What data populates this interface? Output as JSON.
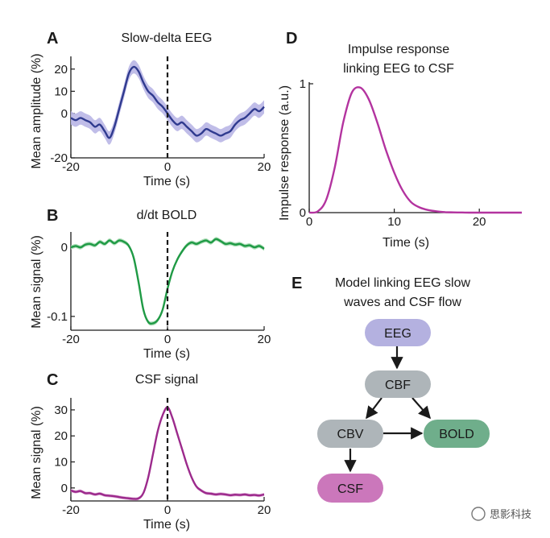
{
  "panel_labels": [
    "A",
    "B",
    "C",
    "D",
    "E"
  ],
  "chart_data": [
    {
      "id": "A",
      "type": "line",
      "title": "Slow-delta EEG",
      "xlabel": "Time (s)",
      "ylabel": "Mean amplitude (%)",
      "xlim": [
        -20,
        20
      ],
      "ylim": [
        -20,
        25
      ],
      "xticks": [
        -20,
        0,
        20
      ],
      "yticks": [
        -20,
        0,
        10,
        20
      ],
      "line_color": "#2f3a8f",
      "band_color": "#b9b6e6",
      "marker_line_x": 0,
      "series": [
        {
          "x": [
            -20,
            -19,
            -18,
            -17,
            -16,
            -15,
            -14,
            -13,
            -12,
            -11,
            -10,
            -9,
            -8,
            -7,
            -6,
            -5,
            -4,
            -3,
            -2,
            -1,
            0,
            1,
            2,
            3,
            4,
            5,
            6,
            7,
            8,
            9,
            10,
            11,
            12,
            13,
            14,
            15,
            16,
            17,
            18,
            19,
            20
          ],
          "values": [
            -2,
            -3,
            -2,
            -3,
            -4,
            -6,
            -5,
            -8,
            -11,
            -6,
            2,
            10,
            18,
            21,
            19,
            14,
            10,
            8,
            5,
            3,
            0,
            -3,
            -5,
            -4,
            -6,
            -8,
            -10,
            -9,
            -7,
            -8,
            -9,
            -10,
            -9,
            -8,
            -5,
            -3,
            -2,
            0,
            2,
            1,
            3
          ],
          "band": 3
        }
      ]
    },
    {
      "id": "B",
      "type": "line",
      "title": "d/dt BOLD",
      "xlabel": "Time (s)",
      "ylabel": "Mean signal (%)",
      "xlim": [
        -20,
        20
      ],
      "ylim": [
        -0.12,
        0.02
      ],
      "xticks": [
        -20,
        0,
        20
      ],
      "yticks": [
        {
          "v": 0,
          "label": "0"
        },
        {
          "v": -0.1,
          "label": "-0.1"
        }
      ],
      "line_color": "#1f9a45",
      "band_color": "#a8dcb4",
      "marker_line_x": 0,
      "series": [
        {
          "x": [
            -20,
            -19,
            -18,
            -17,
            -16,
            -15,
            -14,
            -13,
            -12,
            -11,
            -10,
            -9,
            -8,
            -7,
            -6,
            -5,
            -4,
            -3,
            -2,
            -1,
            0,
            1,
            2,
            3,
            4,
            5,
            6,
            7,
            8,
            9,
            10,
            11,
            12,
            13,
            14,
            15,
            16,
            17,
            18,
            19,
            20
          ],
          "values": [
            0,
            0.002,
            0,
            0.004,
            0.005,
            0.003,
            0.008,
            0.005,
            0.01,
            0.006,
            0.01,
            0.008,
            0.002,
            -0.015,
            -0.05,
            -0.09,
            -0.108,
            -0.11,
            -0.105,
            -0.09,
            -0.06,
            -0.035,
            -0.018,
            -0.006,
            0.003,
            0.007,
            0.005,
            0.008,
            0.01,
            0.007,
            0.012,
            0.009,
            0.005,
            0.006,
            0.004,
            0.005,
            0.002,
            0.003,
            0,
            0.002,
            -0.002
          ],
          "band": 0.003
        }
      ]
    },
    {
      "id": "C",
      "type": "line",
      "title": "CSF signal",
      "xlabel": "Time (s)",
      "ylabel": "Mean signal (%)",
      "xlim": [
        -20,
        20
      ],
      "ylim": [
        -5,
        34
      ],
      "xticks": [
        -20,
        0,
        20
      ],
      "yticks": [
        0,
        10,
        20,
        30
      ],
      "line_color": "#9c2a8c",
      "band_color": "#dca6d5",
      "marker_line_x": 0,
      "series": [
        {
          "x": [
            -20,
            -19,
            -18,
            -17,
            -16,
            -15,
            -14,
            -13,
            -12,
            -11,
            -10,
            -9,
            -8,
            -7,
            -6,
            -5,
            -4,
            -3,
            -2,
            -1,
            0,
            1,
            2,
            3,
            4,
            5,
            6,
            7,
            8,
            9,
            10,
            11,
            12,
            13,
            14,
            15,
            16,
            17,
            18,
            19,
            20
          ],
          "values": [
            -1,
            -1.5,
            -1.2,
            -2,
            -2,
            -2.5,
            -2.2,
            -2.8,
            -3,
            -3.2,
            -3.5,
            -3.8,
            -4,
            -4.2,
            -4,
            -2,
            4,
            13,
            22,
            28,
            31,
            27,
            21,
            15,
            9,
            4,
            0.5,
            -1,
            -2,
            -2.2,
            -2.5,
            -2.3,
            -2.5,
            -2.8,
            -2.6,
            -2.7,
            -2.5,
            -2.8,
            -2.7,
            -2.9,
            -2.5
          ],
          "band": 0.6
        }
      ]
    },
    {
      "id": "D",
      "type": "line",
      "title_lines": [
        "Impulse response",
        "linking EEG to CSF"
      ],
      "xlabel": "Time (s)",
      "ylabel": "Impulse response (a.u.)",
      "xlim": [
        0,
        25
      ],
      "ylim": [
        0,
        1
      ],
      "xticks": [
        0,
        10,
        20
      ],
      "yticks": [
        0,
        1
      ],
      "line_color": "#b3339f",
      "series": [
        {
          "x": [
            0,
            1,
            2,
            3,
            4,
            5,
            6,
            7,
            8,
            9,
            10,
            11,
            12,
            13,
            14,
            15,
            16,
            17,
            18,
            19,
            20,
            21,
            22,
            23,
            24,
            25
          ],
          "values": [
            0,
            0.01,
            0.1,
            0.35,
            0.7,
            0.93,
            0.97,
            0.88,
            0.7,
            0.49,
            0.31,
            0.17,
            0.08,
            0.04,
            0.02,
            0.01,
            0.004,
            0.002,
            0.001,
            0,
            0,
            0,
            0,
            0,
            0,
            0
          ]
        }
      ]
    }
  ],
  "diagram": {
    "title_lines": [
      "Model linking EEG slow",
      "waves and CSF flow"
    ],
    "nodes": [
      {
        "id": "EEG",
        "label": "EEG",
        "color": "#b4b1e0"
      },
      {
        "id": "CBF",
        "label": "CBF",
        "color": "#aeb5b9"
      },
      {
        "id": "CBV",
        "label": "CBV",
        "color": "#aeb5b9"
      },
      {
        "id": "BOLD",
        "label": "BOLD",
        "color": "#6fae8b"
      },
      {
        "id": "CSF",
        "label": "CSF",
        "color": "#cb77bb"
      }
    ],
    "edges": [
      {
        "from": "EEG",
        "to": "CBF"
      },
      {
        "from": "CBF",
        "to": "CBV"
      },
      {
        "from": "CBF",
        "to": "BOLD"
      },
      {
        "from": "CBV",
        "to": "BOLD"
      },
      {
        "from": "CBV",
        "to": "CSF"
      }
    ]
  },
  "watermark": "思影科技"
}
